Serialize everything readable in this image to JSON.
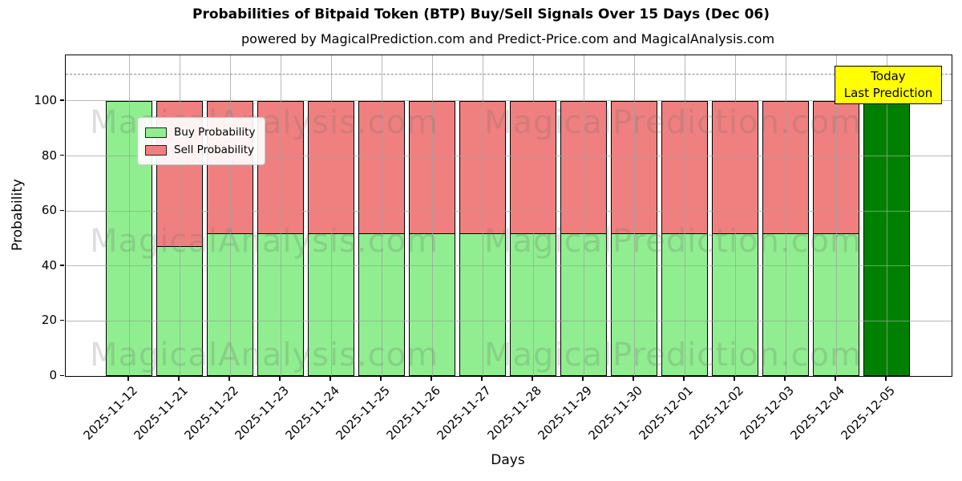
{
  "header": {
    "title": "Probabilities of Bitpaid Token (BTP) Buy/Sell Signals Over 15 Days (Dec 06)",
    "subtitle": "powered by MagicalPrediction.com and Predict-Price.com and MagicalAnalysis.com"
  },
  "chart_data": {
    "type": "bar",
    "stacked": true,
    "title": "Probabilities of Bitpaid Token (BTP) Buy/Sell Signals Over 15 Days (Dec 06)",
    "subtitle": "powered by MagicalPrediction.com and Predict-Price.com and MagicalAnalysis.com",
    "xlabel": "Days",
    "ylabel": "Probability",
    "categories": [
      "2025-11-12",
      "2025-11-21",
      "2025-11-22",
      "2025-11-23",
      "2025-11-24",
      "2025-11-25",
      "2025-11-26",
      "2025-11-27",
      "2025-11-28",
      "2025-11-29",
      "2025-11-30",
      "2025-12-01",
      "2025-12-02",
      "2025-12-03",
      "2025-12-04",
      "2025-12-05"
    ],
    "series": [
      {
        "name": "Buy Probability",
        "color": "#90EE90",
        "values": [
          100,
          47.5,
          52,
          52,
          52,
          52,
          52,
          52,
          52,
          52,
          52,
          52,
          52,
          52,
          52,
          100
        ]
      },
      {
        "name": "Sell Probability",
        "color": "#F08080",
        "values": [
          0,
          52.5,
          48,
          48,
          48,
          48,
          48,
          48,
          48,
          48,
          48,
          48,
          48,
          48,
          48,
          0
        ]
      }
    ],
    "today_bar": {
      "category": "2025-12-05",
      "index": 15,
      "color": "#008000",
      "value": 100
    },
    "yticks": [
      0,
      20,
      40,
      60,
      80,
      100
    ],
    "ylim": [
      0,
      116.6
    ],
    "dashed_line_y": 110,
    "grid": true,
    "legend_position": "upper left",
    "bar_edge_color": "#000000"
  },
  "legend": {
    "items": [
      {
        "label": "Buy Probability",
        "color": "#90EE90"
      },
      {
        "label": "Sell Probability",
        "color": "#F08080"
      }
    ]
  },
  "annotation": {
    "line1": "Today",
    "line2": "Last Prediction",
    "bg_color": "#FFFF00"
  },
  "watermark": {
    "left_text": "MagicalAnalysis.com",
    "right_text": "MagicalPrediction.com"
  },
  "colors": {
    "buy": "#90EE90",
    "sell": "#F08080",
    "today": "#008000",
    "annotation_bg": "#FFFF00",
    "grid": "#a0a0a0",
    "dashed_line": "#8a8a8a"
  }
}
